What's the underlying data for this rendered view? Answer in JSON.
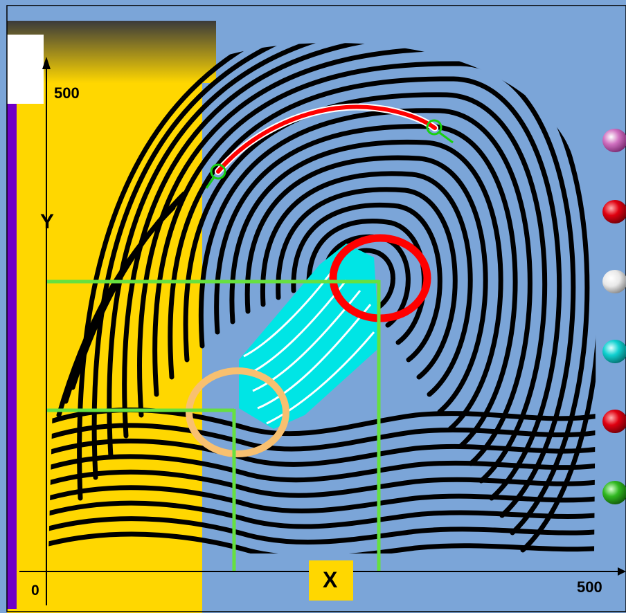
{
  "axis": {
    "y_label": "Y",
    "x_label": "X",
    "y_max_label": "500",
    "x_max_label": "500",
    "origin_label": "0"
  },
  "colors": {
    "slide_background": "#7BA5D8",
    "yellow_panel": "#FFD700",
    "purple_sidebar": "#7000C8",
    "ridge": "#000000",
    "ridge_count_path": "#FF0000",
    "core_circle": "#FF0000",
    "delta_circle": "#F8C070",
    "pattern_area": "#00E5E5",
    "guide_lines": "#66E040",
    "endpoint_marker": "#18D010",
    "x_label_box": "#FFD700"
  },
  "legend_bullets": [
    {
      "icon": "pink-ball-icon",
      "color": "#D070C0"
    },
    {
      "icon": "red-ball-icon",
      "color": "#E00010"
    },
    {
      "icon": "white-ball-icon",
      "color": "#E8E8E8"
    },
    {
      "icon": "cyan-ball-icon",
      "color": "#10D0D0"
    },
    {
      "icon": "red-ball-icon",
      "color": "#E00010"
    },
    {
      "icon": "green-ball-icon",
      "color": "#30B820"
    }
  ]
}
